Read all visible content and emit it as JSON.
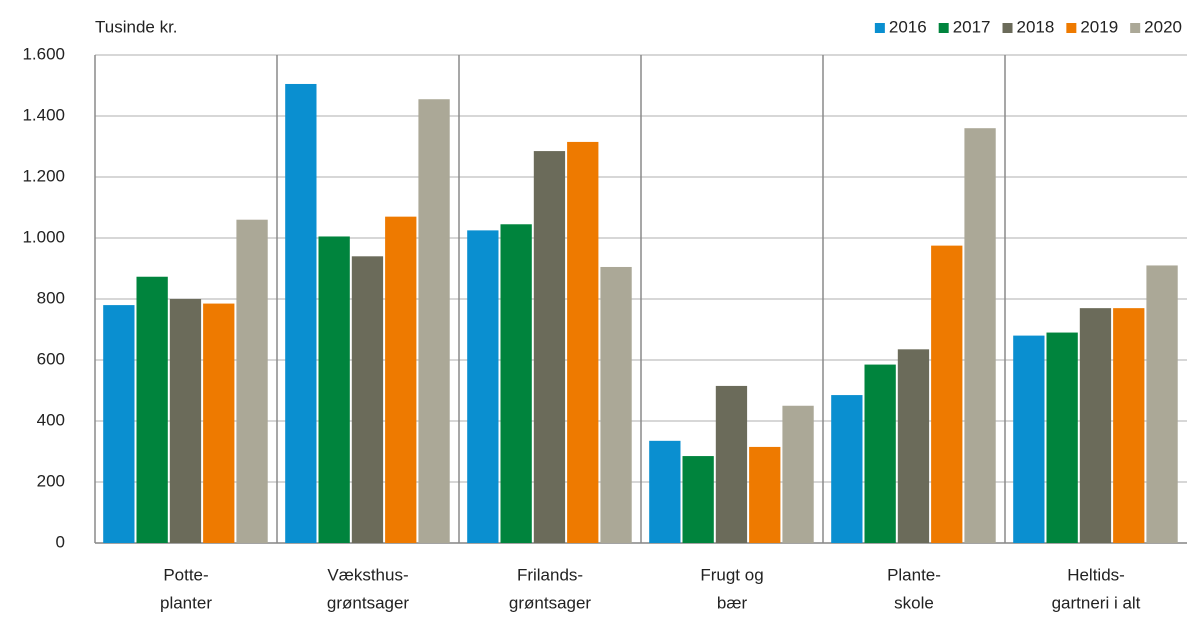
{
  "chart_data": {
    "type": "bar",
    "y_axis_label": "Tusinde kr.",
    "categories": [
      [
        "Potte-",
        "planter"
      ],
      [
        "Væksthus-",
        "grøntsager"
      ],
      [
        "Frilands-",
        "grøntsager"
      ],
      [
        "Frugt og",
        "bær"
      ],
      [
        "Plante-",
        "skole"
      ],
      [
        "Heltids-",
        "gartneri i alt"
      ]
    ],
    "series": [
      {
        "name": "2016",
        "color": "#0a8fd0",
        "values": [
          780,
          1505,
          1025,
          335,
          485,
          680
        ]
      },
      {
        "name": "2017",
        "color": "#00843d",
        "values": [
          873,
          1005,
          1045,
          285,
          585,
          690
        ]
      },
      {
        "name": "2018",
        "color": "#6b6b5a",
        "values": [
          800,
          940,
          1285,
          515,
          635,
          770
        ]
      },
      {
        "name": "2019",
        "color": "#ee7a00",
        "values": [
          785,
          1070,
          1315,
          315,
          975,
          770
        ]
      },
      {
        "name": "2020",
        "color": "#aba897",
        "values": [
          1060,
          1455,
          905,
          450,
          1360,
          910
        ]
      }
    ],
    "ylim": [
      0,
      1600
    ],
    "yticks": [
      0,
      200,
      400,
      600,
      800,
      {
        "value": 1000,
        "label": "1.000"
      },
      {
        "value": 1200,
        "label": "1.200"
      },
      {
        "value": 1400,
        "label": "1.400"
      },
      {
        "value": 1600,
        "label": "1.600"
      }
    ],
    "grid": true,
    "legend": "top-right"
  }
}
